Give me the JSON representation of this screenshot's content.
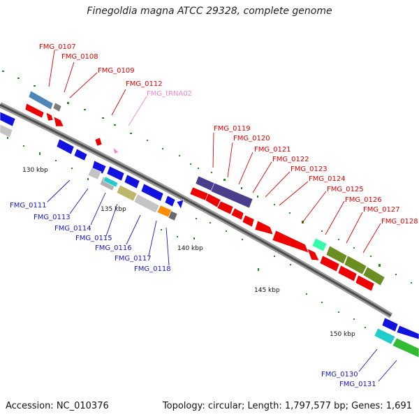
{
  "title": "Finegoldia magna ATCC 29328, complete genome",
  "footer": {
    "accession": "Accession: NC_010376",
    "topology": "Topology: circular; Length: 1,797,577 bp; Genes: 1,691"
  },
  "scale_labels": [
    "130 kbp",
    "135 kbp",
    "140 kbp",
    "145 kbp",
    "150 kbp"
  ],
  "gene_labels": [
    "FMG_0107",
    "FMG_0108",
    "FMG_0109",
    "FMG_0112",
    "FMG_tRNA02",
    "FMG_0119",
    "FMG_0120",
    "FMG_0121",
    "FMG_0122",
    "FMG_0123",
    "FMG_0124",
    "FMG_0125",
    "FMG_0126",
    "FMG_0127",
    "FMG_0128",
    "FMG_0111",
    "FMG_0113",
    "FMG_0114",
    "FMG_0115",
    "FMG_0116",
    "FMG_0117",
    "FMG_0118",
    "FMG_0130",
    "FMG_0131"
  ],
  "colors": {
    "forward_label": "#e00000",
    "reverse_label": "#1515c8",
    "trna_label": "#ee88cc",
    "backbone": "#666666",
    "tick": "#228b22"
  }
}
